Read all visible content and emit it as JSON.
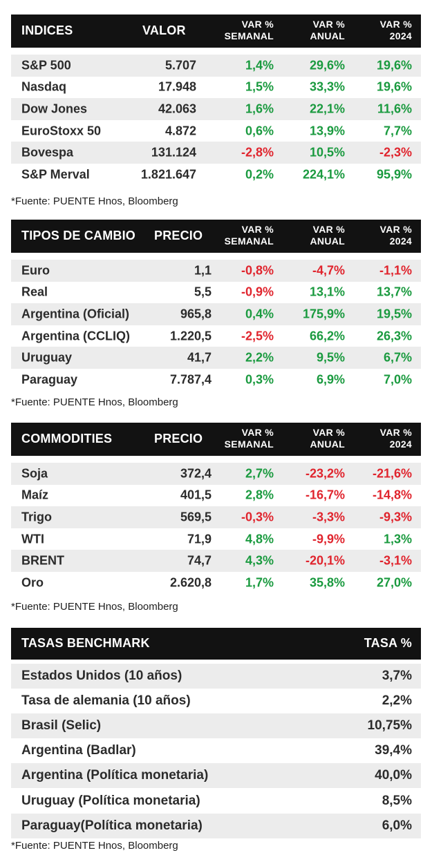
{
  "indices": {
    "headers": {
      "name": "INDICES",
      "value": "VALOR",
      "weekly": [
        "VAR %",
        "SEMANAL"
      ],
      "annual": [
        "VAR %",
        "ANUAL"
      ],
      "ytd": [
        "VAR %",
        "2024"
      ]
    },
    "rows": [
      {
        "name": "S&P 500",
        "value": "5.707",
        "weekly": "1,4%",
        "annual": "29,6%",
        "ytd": "19,6%",
        "weekly_sign": "pos",
        "annual_sign": "pos",
        "ytd_sign": "pos"
      },
      {
        "name": "Nasdaq",
        "value": "17.948",
        "weekly": "1,5%",
        "annual": "33,3%",
        "ytd": "19,6%",
        "weekly_sign": "pos",
        "annual_sign": "pos",
        "ytd_sign": "pos"
      },
      {
        "name": "Dow Jones",
        "value": "42.063",
        "weekly": "1,6%",
        "annual": "22,1%",
        "ytd": "11,6%",
        "weekly_sign": "pos",
        "annual_sign": "pos",
        "ytd_sign": "pos"
      },
      {
        "name": "EuroStoxx 50",
        "value": "4.872",
        "weekly": "0,6%",
        "annual": "13,9%",
        "ytd": "7,7%",
        "weekly_sign": "pos",
        "annual_sign": "pos",
        "ytd_sign": "pos"
      },
      {
        "name": "Bovespa",
        "value": "131.124",
        "weekly": "-2,8%",
        "annual": "10,5%",
        "ytd": "-2,3%",
        "weekly_sign": "neg",
        "annual_sign": "pos",
        "ytd_sign": "neg"
      },
      {
        "name": "S&P Merval",
        "value": "1.821.647",
        "weekly": "0,2%",
        "annual": "224,1%",
        "ytd": "95,9%",
        "weekly_sign": "pos",
        "annual_sign": "pos",
        "ytd_sign": "pos"
      }
    ],
    "source": "*Fuente: PUENTE Hnos, Bloomberg"
  },
  "fx": {
    "headers": {
      "name": "TIPOS DE CAMBIO",
      "value": "PRECIO",
      "weekly": [
        "VAR %",
        "SEMANAL"
      ],
      "annual": [
        "VAR %",
        "ANUAL"
      ],
      "ytd": [
        "VAR %",
        "2024"
      ]
    },
    "rows": [
      {
        "name": "Euro",
        "value": "1,1",
        "weekly": "-0,8%",
        "annual": "-4,7%",
        "ytd": "-1,1%",
        "weekly_sign": "neg",
        "annual_sign": "neg",
        "ytd_sign": "neg"
      },
      {
        "name": "Real",
        "value": "5,5",
        "weekly": "-0,9%",
        "annual": "13,1%",
        "ytd": "13,7%",
        "weekly_sign": "neg",
        "annual_sign": "pos",
        "ytd_sign": "pos"
      },
      {
        "name": "Argentina (Oficial)",
        "value": "965,8",
        "weekly": "0,4%",
        "annual": "175,9%",
        "ytd": "19,5%",
        "weekly_sign": "pos",
        "annual_sign": "pos",
        "ytd_sign": "pos"
      },
      {
        "name": "Argentina (CCLIQ)",
        "value": "1.220,5",
        "weekly": "-2,5%",
        "annual": "66,2%",
        "ytd": "26,3%",
        "weekly_sign": "neg",
        "annual_sign": "pos",
        "ytd_sign": "pos"
      },
      {
        "name": "Uruguay",
        "value": "41,7",
        "weekly": "2,2%",
        "annual": "9,5%",
        "ytd": "6,7%",
        "weekly_sign": "pos",
        "annual_sign": "pos",
        "ytd_sign": "pos"
      },
      {
        "name": "Paraguay",
        "value": "7.787,4",
        "weekly": "0,3%",
        "annual": "6,9%",
        "ytd": "7,0%",
        "weekly_sign": "pos",
        "annual_sign": "pos",
        "ytd_sign": "pos"
      }
    ],
    "source": "*Fuente: PUENTE Hnos, Bloomberg"
  },
  "commodities": {
    "headers": {
      "name": "COMMODITIES",
      "value": "PRECIO",
      "weekly": [
        "VAR %",
        "SEMANAL"
      ],
      "annual": [
        "VAR %",
        "ANUAL"
      ],
      "ytd": [
        "VAR %",
        "2024"
      ]
    },
    "rows": [
      {
        "name": "Soja",
        "value": "372,4",
        "weekly": "2,7%",
        "annual": "-23,2%",
        "ytd": "-21,6%",
        "weekly_sign": "pos",
        "annual_sign": "neg",
        "ytd_sign": "neg"
      },
      {
        "name": "Maíz",
        "value": "401,5",
        "weekly": "2,8%",
        "annual": "-16,7%",
        "ytd": "-14,8%",
        "weekly_sign": "pos",
        "annual_sign": "neg",
        "ytd_sign": "neg"
      },
      {
        "name": "Trigo",
        "value": "569,5",
        "weekly": "-0,3%",
        "annual": "-3,3%",
        "ytd": "-9,3%",
        "weekly_sign": "neg",
        "annual_sign": "neg",
        "ytd_sign": "neg"
      },
      {
        "name": "WTI",
        "value": "71,9",
        "weekly": "4,8%",
        "annual": "-9,9%",
        "ytd": "1,3%",
        "weekly_sign": "pos",
        "annual_sign": "neg",
        "ytd_sign": "pos"
      },
      {
        "name": "BRENT",
        "value": "74,7",
        "weekly": "4,3%",
        "annual": "-20,1%",
        "ytd": "-3,1%",
        "weekly_sign": "pos",
        "annual_sign": "neg",
        "ytd_sign": "neg"
      },
      {
        "name": "Oro",
        "value": "2.620,8",
        "weekly": "1,7%",
        "annual": "35,8%",
        "ytd": "27,0%",
        "weekly_sign": "pos",
        "annual_sign": "pos",
        "ytd_sign": "pos"
      }
    ],
    "source": "*Fuente: PUENTE Hnos, Bloomberg"
  },
  "rates": {
    "headers": {
      "name": "TASAS BENCHMARK",
      "rate": "TASA %"
    },
    "rows": [
      {
        "name": "Estados Unidos (10 años)",
        "rate": "3,7%"
      },
      {
        "name": "Tasa de alemania (10 años)",
        "rate": "2,2%"
      },
      {
        "name": "Brasil (Selic)",
        "rate": "10,75%"
      },
      {
        "name": "Argentina (Badlar)",
        "rate": "39,4%"
      },
      {
        "name": "Argentina (Política monetaria)",
        "rate": "40,0%"
      },
      {
        "name": "Uruguay (Política monetaria)",
        "rate": "8,5%"
      },
      {
        "name": "Paraguay(Política monetaria)",
        "rate": "6,0%"
      }
    ],
    "source": "*Fuente: PUENTE Hnos, Bloomberg"
  },
  "colors": {
    "positive": "#1a9a3f",
    "negative": "#e0242d",
    "header_bg": "#121212",
    "stripe": "#ececec"
  }
}
